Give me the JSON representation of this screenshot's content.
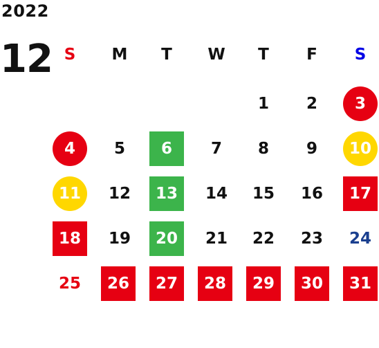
{
  "calendar": {
    "year": "2022",
    "month": "12",
    "weekdays": [
      "S",
      "M",
      "T",
      "W",
      "T",
      "F",
      "S"
    ],
    "days": {
      "d1": "1",
      "d2": "2",
      "d3": "3",
      "d4": "4",
      "d5": "5",
      "d6": "6",
      "d7": "7",
      "d8": "8",
      "d9": "9",
      "d10": "10",
      "d11": "11",
      "d12": "12",
      "d13": "13",
      "d14": "14",
      "d15": "15",
      "d16": "16",
      "d17": "17",
      "d18": "18",
      "d19": "19",
      "d20": "20",
      "d21": "21",
      "d22": "22",
      "d23": "23",
      "d24": "24",
      "d25": "25",
      "d26": "26",
      "d27": "27",
      "d28": "28",
      "d29": "29",
      "d30": "30",
      "d31": "31"
    }
  },
  "colors": {
    "sunday_red": "#e60012",
    "saturday_blue": "#0000e6",
    "holiday_red": "#e60012",
    "green": "#3cb44b",
    "yellow": "#ffd700",
    "navy": "#1a3f8f",
    "text": "#111111"
  }
}
